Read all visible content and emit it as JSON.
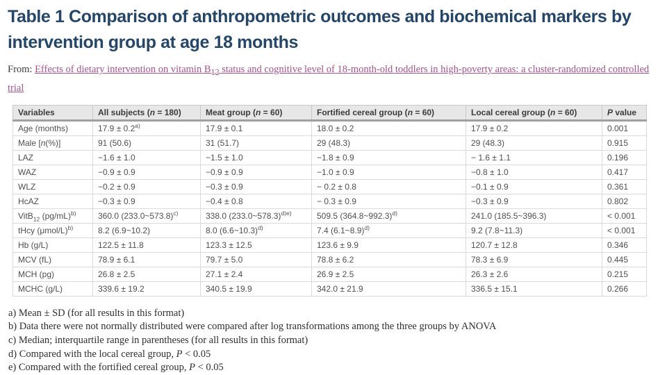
{
  "colors": {
    "title_text": "#264668",
    "link_text": "#a3538c",
    "table_header_bg": "#e7e7e7",
    "table_header_rule": "#a0a0a0",
    "table_border": "#d9d9d9",
    "body_text": "#4f4f4f"
  },
  "header": {
    "title": "Table 1 Comparison of anthropometric outcomes and biochemical markers by intervention group at age 18 months",
    "source_prefix": "From: ",
    "source_link": "Effects of dietary intervention on vitamin B_{12} status and cognitive level of 18-month-old toddlers in high-poverty areas: a cluster-randomized controlled trial"
  },
  "table": {
    "headers": [
      "Variables",
      "All subjects (*n* = 180)",
      "Meat group (*n* = 60)",
      "Fortified cereal group (*n* = 60)",
      "Local cereal group (*n* = 60)",
      "*P* value"
    ],
    "rows": [
      {
        "cells": [
          "Age (months)",
          "17.9 ± 0.2^{a)}",
          "17.9 ± 0.1",
          "18.0 ± 0.2",
          "17.9 ± 0.2",
          "0.001"
        ]
      },
      {
        "cells": [
          "Male [*n*(%)]",
          "91 (50.6)",
          "31 (51.7)",
          "29 (48.3)",
          "29 (48.3)",
          "0.915"
        ]
      },
      {
        "cells": [
          "LAZ",
          "−1.6 ± 1.0",
          "−1.5 ± 1.0",
          "−1.8 ± 0.9",
          "− 1.6 ± 1.1",
          "0.196"
        ]
      },
      {
        "cells": [
          "WAZ",
          "−0.9 ± 0.9",
          "−0.9 ± 0.9",
          "−1.0 ± 0.9",
          "−0.8 ± 1.0",
          "0.417"
        ]
      },
      {
        "cells": [
          "WLZ",
          "−0.2 ± 0.9",
          "−0.3 ± 0.9",
          "− 0.2 ± 0.8",
          "−0.1 ± 0.9",
          "0.361"
        ]
      },
      {
        "cells": [
          "HcAZ",
          "−0.3 ± 0.9",
          "−0.4 ± 0.8",
          "− 0.3 ± 0.9",
          "−0.3 ± 0.9",
          "0.802"
        ]
      },
      {
        "cells": [
          "VitB_{12} (pg/mL)^{b)}",
          "360.0 (233.0~573.8)^{c)}",
          "338.0 (233.0~578.3)^{d)e)}",
          "509.5 (364.8~992.3)^{d)}",
          "241.0 (185.5~396.3)",
          "< 0.001"
        ]
      },
      {
        "cells": [
          "tHcy (μmol/L)^{b)}",
          "8.2 (6.9~10.2)",
          "8.0 (6.6~10.3)^{d)}",
          "7.4 (6.1~8.9)^{d)}",
          "9.2 (7.8~11.3)",
          "< 0.001"
        ]
      },
      {
        "cells": [
          "Hb (g/L)",
          "122.5 ± 11.8",
          "123.3 ± 12.5",
          "123.6 ± 9.9",
          "120.7 ± 12.8",
          "0.346"
        ]
      },
      {
        "cells": [
          "MCV (fL)",
          "78.9 ± 6.1",
          "79.7 ± 5.0",
          "78.8 ± 6.2",
          "78.3 ± 6.9",
          "0.445"
        ]
      },
      {
        "cells": [
          "MCH (pg)",
          "26.8 ± 2.5",
          "27.1 ± 2.4",
          "26.9 ± 2.5",
          "26.3 ± 2.6",
          "0.215"
        ]
      },
      {
        "cells": [
          "MCHC (g/L)",
          "339.6 ± 19.2",
          "340.5 ± 19.9",
          "342.0 ± 21.9",
          "336.5 ± 15.1",
          "0.266"
        ]
      }
    ]
  },
  "footnotes": [
    "a) Mean ± SD (for all results in this format)",
    "b) Data there were not normally distributed were compared after log transformations among the three groups by ANOVA",
    "c) Median; interquartile range in parentheses (for all results in this format)",
    "d) Compared with the local cereal group, *P* < 0.05",
    "e) Compared with the fortified cereal group, *P* < 0.05"
  ]
}
